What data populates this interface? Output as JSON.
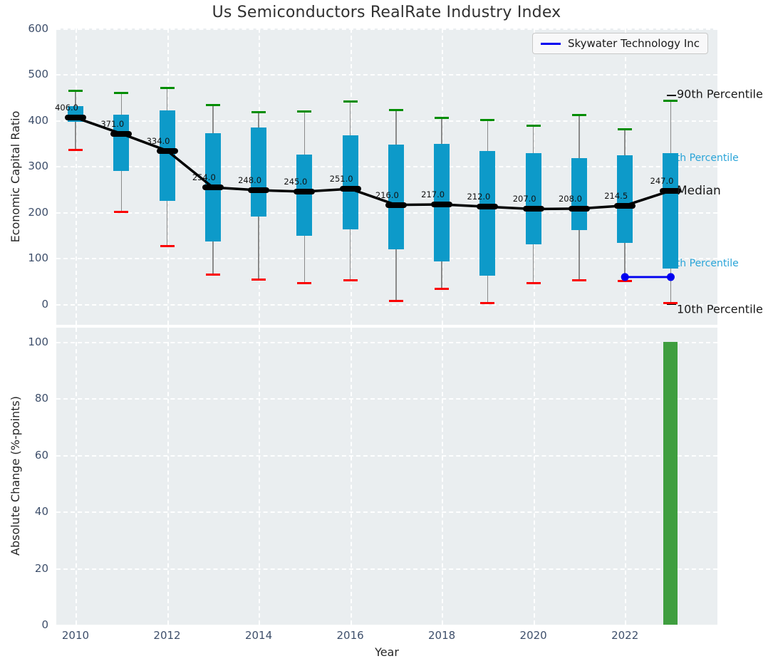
{
  "title": "Us Semiconductors RealRate Industry Index",
  "legend": {
    "label": "Skywater Technology Inc",
    "line_color": "#0000f0"
  },
  "right_labels": {
    "p90": {
      "text": "90th Percentile",
      "color": "#1a1a1a"
    },
    "p75": {
      "text": "75th Percentile",
      "color": "#29a4d8"
    },
    "median": {
      "text": "Median",
      "color": "#1a1a1a"
    },
    "p25": {
      "text": "25th Percentile",
      "color": "#29a4d8"
    },
    "p10": {
      "text": "10th Percentile",
      "color": "#1a1a1a"
    }
  },
  "colors": {
    "box_fill": "#0d9ac9",
    "cap_90th": "#008d00",
    "cap_10th": "#fa0000",
    "whisker": "#8a8a8a",
    "median": "#000000",
    "company_line": "#0000f0",
    "change_bar": "#3f9e3f",
    "plot_background": "#eaeef0",
    "grid": "#ffffff",
    "tick_text": "#3e4f6b"
  },
  "chart_data": [
    {
      "type": "boxplot",
      "title": "Us Semiconductors RealRate Industry Index",
      "ylabel": "Economic Capital Ratio",
      "xlabel": "",
      "ylim": [
        -45,
        600
      ],
      "yticks": [
        0,
        100,
        200,
        300,
        400,
        500,
        600
      ],
      "xlim": [
        2009.58,
        2024.02
      ],
      "xticks": [
        2010,
        2012,
        2014,
        2016,
        2018,
        2020,
        2022
      ],
      "grid": true,
      "legend_position": "upper right",
      "years": [
        2010,
        2011,
        2012,
        2013,
        2014,
        2015,
        2016,
        2017,
        2018,
        2019,
        2020,
        2021,
        2022,
        2023
      ],
      "p90": [
        464,
        460,
        470,
        434,
        418,
        420,
        441,
        423,
        405,
        400,
        388,
        412,
        380,
        442
      ],
      "q3": [
        431,
        412,
        422,
        372,
        384,
        325,
        368,
        348,
        349,
        333,
        328,
        318,
        324,
        329
      ],
      "median": [
        406,
        371,
        334,
        254,
        248,
        245,
        251,
        216,
        217,
        212,
        207,
        208,
        214.5,
        247
      ],
      "q1": [
        397,
        290,
        224,
        137,
        191,
        149,
        162,
        120,
        93,
        62,
        130,
        161,
        134,
        78
      ],
      "p10": [
        335,
        200,
        127,
        65,
        54,
        45,
        52,
        7,
        33,
        2,
        46,
        52,
        51,
        3
      ],
      "median_labels": [
        "406.0",
        "371.0",
        "334.0",
        "254.0",
        "248.0",
        "245.0",
        "251.0",
        "216.0",
        "217.0",
        "212.0",
        "207.0",
        "208.0",
        "214.5",
        "247.0"
      ],
      "series": [
        {
          "name": "Skywater Technology Inc",
          "x": [
            2022,
            2023
          ],
          "y": [
            59,
            59
          ],
          "color": "#0000f0"
        }
      ]
    },
    {
      "type": "bar",
      "ylabel": "Absolute Change (%-points)",
      "xlabel": "Year",
      "ylim": [
        0,
        105
      ],
      "yticks": [
        0,
        20,
        40,
        60,
        80,
        100
      ],
      "xlim": [
        2009.58,
        2024.02
      ],
      "xticks": [
        2010,
        2012,
        2014,
        2016,
        2018,
        2020,
        2022
      ],
      "grid": true,
      "x": [
        2023
      ],
      "values": [
        100
      ],
      "bar_color": "#3f9e3f"
    }
  ]
}
